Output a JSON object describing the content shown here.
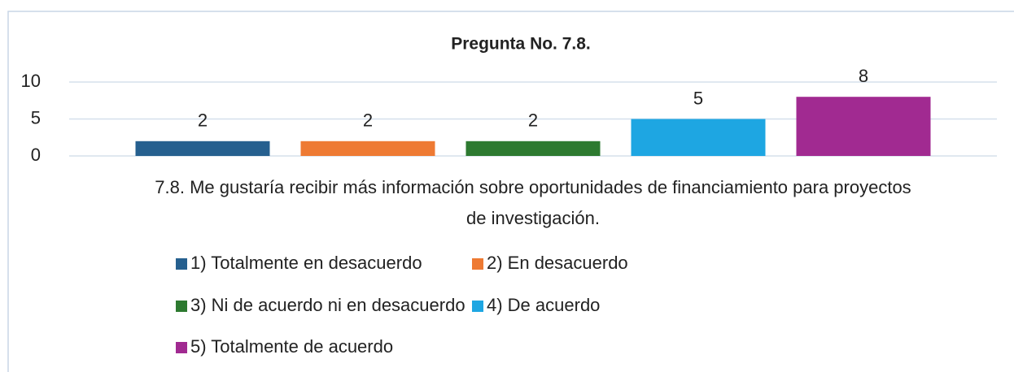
{
  "chart_data": {
    "type": "bar",
    "title": "Pregunta No. 7.8.",
    "categories": [
      "7.8. Me gustaría recibir más información sobre oportunidades de financiamiento para proyectos de investigación."
    ],
    "series": [
      {
        "name": "1) Totalmente en desacuerdo",
        "color": "#26608f",
        "values": [
          2
        ]
      },
      {
        "name": "2) En desacuerdo",
        "color": "#ee7a33",
        "values": [
          2
        ]
      },
      {
        "name": "3) Ni de acuerdo ni en desacuerdo",
        "color": "#2d7a30",
        "values": [
          2
        ]
      },
      {
        "name": "4) De acuerdo",
        "color": "#1ea6e2",
        "values": [
          5
        ]
      },
      {
        "name": "5) Totalmente de acuerdo",
        "color": "#a12a91",
        "values": [
          8
        ]
      }
    ],
    "ylim": [
      0,
      10
    ],
    "yticks": [
      0,
      5,
      10
    ],
    "grid": true
  }
}
